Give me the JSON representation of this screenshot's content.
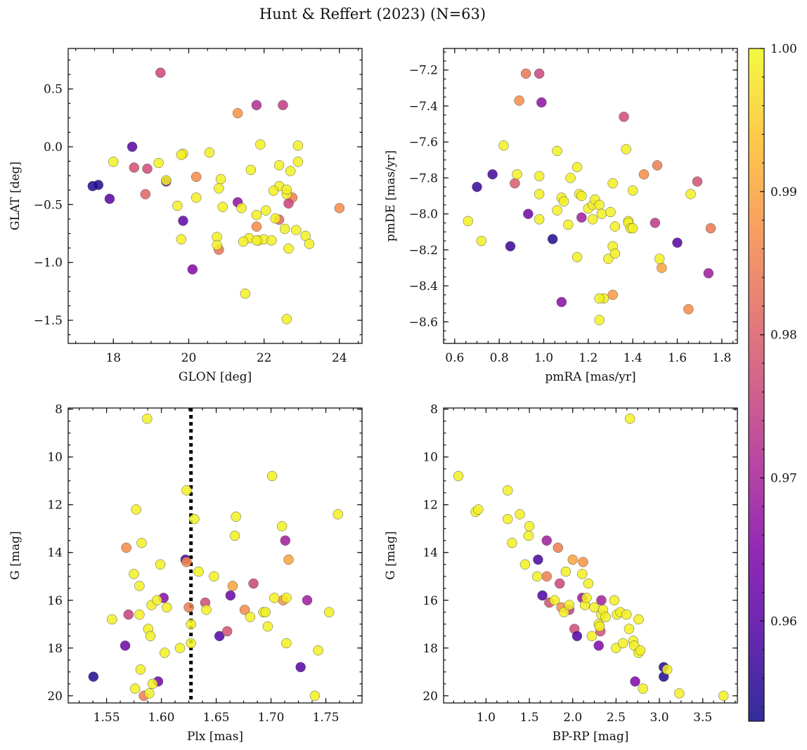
{
  "title": "Hunt & Reffert (2023) (N=63)",
  "colorbar": {
    "range": [
      0.953,
      1.0
    ],
    "ticks": [
      0.96,
      0.97,
      0.98,
      0.99,
      1.0
    ],
    "tick_labels": [
      "0.96",
      "0.97",
      "0.98",
      "0.99",
      "1.00"
    ],
    "colormap": "plasma"
  },
  "chart_data": [
    {
      "type": "scatter",
      "id": "glon_glat",
      "xlabel": "GLON [deg]",
      "ylabel": "GLAT [deg]",
      "xlim": [
        16.8,
        24.6
      ],
      "ylim": [
        -1.7,
        0.85
      ],
      "xticks": [
        18,
        20,
        22,
        24
      ],
      "xtick_labels": [
        "18",
        "20",
        "22",
        "24"
      ],
      "yticks": [
        -1.5,
        -1.0,
        -0.5,
        0.0,
        0.5
      ],
      "ytick_labels": [
        "−1.5",
        "−1.0",
        "−0.5",
        "0.0",
        "0.5"
      ],
      "inverted_y": false,
      "x": [
        17.45,
        17.6,
        17.9,
        18.5,
        18.55,
        18.9,
        18.85,
        19.4,
        19.25,
        21.3,
        21.8,
        22.5,
        21.3,
        22.75,
        22.65,
        22.4,
        21.8,
        20.8,
        20.2,
        20.1,
        19.85,
        24.0,
        18.0,
        19.4,
        19.2,
        19.85,
        19.8,
        20.55,
        21.9,
        22.9,
        22.4,
        20.85,
        20.2,
        21.65,
        20.8,
        20.9,
        19.7,
        22.7,
        22.6,
        22.4,
        22.6,
        22.9,
        22.85,
        23.1,
        23.2,
        21.4,
        21.8,
        22.3,
        21.6,
        20.75,
        20.75,
        21.45,
        21.85,
        22.0,
        22.2,
        21.5,
        22.6,
        22.65,
        21.8,
        22.55,
        22.05,
        22.25,
        19.8
      ],
      "y": [
        -0.34,
        -0.33,
        -0.45,
        0.0,
        -0.18,
        -0.19,
        -0.41,
        -0.3,
        0.64,
        0.29,
        0.36,
        0.36,
        -0.48,
        -0.44,
        -0.49,
        -0.63,
        -0.69,
        -0.89,
        -0.26,
        -1.06,
        -0.64,
        -0.53,
        -0.13,
        -0.29,
        -0.14,
        -0.06,
        -0.07,
        -0.05,
        0.02,
        0.01,
        -0.16,
        -0.28,
        -0.44,
        -0.2,
        -0.36,
        -0.52,
        -0.51,
        -0.21,
        -0.41,
        -0.34,
        -0.37,
        -0.13,
        -0.72,
        -0.77,
        -0.84,
        -0.53,
        -0.59,
        -0.62,
        -0.79,
        -0.78,
        -0.85,
        -0.82,
        -0.81,
        -0.8,
        -0.81,
        -1.27,
        -1.49,
        -0.88,
        -0.81,
        -0.71,
        -0.55,
        -0.38,
        -0.8
      ],
      "c": [
        0.955,
        0.955,
        0.96,
        0.96,
        0.978,
        0.977,
        0.981,
        0.962,
        0.976,
        0.988,
        0.972,
        0.974,
        0.967,
        0.985,
        0.976,
        0.982,
        0.987,
        0.984,
        0.987,
        0.965,
        0.961,
        0.987,
        0.999,
        0.999,
        0.999,
        0.999,
        0.999,
        0.999,
        0.999,
        0.999,
        0.999,
        0.999,
        0.999,
        0.999,
        0.999,
        0.999,
        0.999,
        0.999,
        0.999,
        0.999,
        0.999,
        0.999,
        0.999,
        0.999,
        0.999,
        0.999,
        0.999,
        0.999,
        0.999,
        0.999,
        0.999,
        0.999,
        0.999,
        0.999,
        0.999,
        0.999,
        0.999,
        0.999,
        0.999,
        0.999,
        0.999,
        0.999,
        0.999
      ]
    },
    {
      "type": "scatter",
      "id": "pmra_pmde",
      "xlabel": "pmRA [mas/yr]",
      "ylabel": "pmDE [mas/yr]",
      "xlim": [
        0.55,
        1.87
      ],
      "ylim": [
        -8.72,
        -7.08
      ],
      "xticks": [
        0.6,
        0.8,
        1.0,
        1.2,
        1.4,
        1.6,
        1.8
      ],
      "xtick_labels": [
        "0.6",
        "0.8",
        "1.0",
        "1.2",
        "1.4",
        "1.6",
        "1.8"
      ],
      "yticks": [
        -8.6,
        -8.4,
        -8.2,
        -8.0,
        -7.8,
        -7.6,
        -7.4,
        -7.2
      ],
      "ytick_labels": [
        "−8.6",
        "−8.4",
        "−8.2",
        "−8.0",
        "−7.8",
        "−7.6",
        "−7.4",
        "−7.2"
      ],
      "inverted_y": false,
      "x": [
        0.7,
        0.77,
        0.85,
        0.93,
        1.04,
        0.99,
        1.08,
        0.92,
        0.98,
        0.89,
        0.87,
        1.17,
        1.36,
        1.45,
        1.51,
        1.69,
        1.5,
        1.75,
        1.65,
        1.6,
        1.74,
        1.53,
        1.31,
        0.66,
        0.72,
        0.82,
        0.88,
        0.98,
        0.98,
        0.98,
        1.06,
        1.06,
        1.08,
        1.09,
        1.11,
        1.12,
        1.15,
        1.16,
        1.17,
        1.2,
        1.22,
        1.22,
        1.23,
        1.25,
        1.26,
        1.27,
        1.29,
        1.3,
        1.31,
        1.31,
        1.32,
        1.32,
        1.37,
        1.38,
        1.38,
        1.39,
        1.4,
        1.4,
        1.52,
        1.66,
        1.15,
        1.25,
        1.25
      ],
      "y": [
        -7.85,
        -7.78,
        -8.18,
        -8.0,
        -8.14,
        -7.38,
        -8.49,
        -7.22,
        -7.22,
        -7.37,
        -7.83,
        -8.02,
        -7.46,
        -7.78,
        -7.73,
        -7.82,
        -8.05,
        -8.08,
        -8.53,
        -8.16,
        -8.33,
        -8.3,
        -8.45,
        -8.04,
        -8.15,
        -7.62,
        -7.78,
        -7.79,
        -7.89,
        -8.03,
        -7.65,
        -7.98,
        -7.91,
        -7.93,
        -8.06,
        -7.8,
        -7.74,
        -7.89,
        -7.9,
        -7.97,
        -7.95,
        -8.03,
        -7.92,
        -7.95,
        -8.0,
        -8.47,
        -8.25,
        -7.99,
        -7.83,
        -8.18,
        -8.22,
        -8.07,
        -7.64,
        -8.04,
        -8.05,
        -8.08,
        -7.87,
        -8.08,
        -8.25,
        -7.89,
        -8.24,
        -8.59,
        -8.47
      ],
      "c": [
        0.957,
        0.958,
        0.957,
        0.963,
        0.955,
        0.967,
        0.966,
        0.984,
        0.976,
        0.987,
        0.98,
        0.969,
        0.977,
        0.987,
        0.985,
        0.978,
        0.974,
        0.984,
        0.987,
        0.96,
        0.969,
        0.99,
        0.989,
        0.999,
        0.999,
        0.999,
        0.999,
        0.999,
        0.999,
        0.999,
        0.999,
        0.999,
        0.999,
        0.999,
        0.999,
        0.999,
        0.999,
        0.999,
        0.999,
        0.999,
        0.999,
        0.999,
        0.999,
        0.999,
        0.999,
        0.999,
        0.999,
        0.999,
        0.999,
        0.999,
        0.999,
        0.999,
        0.999,
        0.999,
        0.999,
        0.999,
        0.999,
        0.999,
        0.999,
        0.999,
        0.999,
        0.999,
        0.999
      ]
    },
    {
      "type": "scatter",
      "id": "plx_g",
      "xlabel": "Plx [mas]",
      "ylabel": "G [mag]",
      "xlim": [
        1.515,
        1.783
      ],
      "ylim": [
        20.3,
        7.95
      ],
      "xticks": [
        1.55,
        1.6,
        1.65,
        1.7,
        1.75
      ],
      "xtick_labels": [
        "1.55",
        "1.60",
        "1.65",
        "1.70",
        "1.75"
      ],
      "yticks": [
        8,
        10,
        12,
        14,
        16,
        18,
        20
      ],
      "ytick_labels": [
        "8",
        "10",
        "12",
        "14",
        "16",
        "18",
        "20"
      ],
      "inverted_y": true,
      "vline": {
        "x": 1.627,
        "style": "dotted"
      },
      "x": [
        1.538,
        1.567,
        1.584,
        1.597,
        1.602,
        1.622,
        1.623,
        1.625,
        1.64,
        1.653,
        1.66,
        1.663,
        1.665,
        1.676,
        1.684,
        1.711,
        1.713,
        1.716,
        1.727,
        1.733,
        1.568,
        1.57,
        1.587,
        1.555,
        1.575,
        1.577,
        1.58,
        1.581,
        1.582,
        1.58,
        1.588,
        1.591,
        1.59,
        1.589,
        1.592,
        1.596,
        1.599,
        1.603,
        1.605,
        1.617,
        1.623,
        1.627,
        1.627,
        1.63,
        1.634,
        1.641,
        1.648,
        1.667,
        1.668,
        1.681,
        1.693,
        1.695,
        1.697,
        1.701,
        1.703,
        1.71,
        1.714,
        1.714,
        1.74,
        1.743,
        1.753,
        1.761,
        1.576
      ],
      "y": [
        19.2,
        17.9,
        20.0,
        19.4,
        15.9,
        14.3,
        14.4,
        16.3,
        16.1,
        17.5,
        17.3,
        15.8,
        15.4,
        16.4,
        15.3,
        16.0,
        13.5,
        14.3,
        18.8,
        16.0,
        13.8,
        16.6,
        8.4,
        16.8,
        14.9,
        12.2,
        16.6,
        18.9,
        13.6,
        15.4,
        17.2,
        16.2,
        17.5,
        19.9,
        19.5,
        16.0,
        14.5,
        18.2,
        16.3,
        18.0,
        11.4,
        17.0,
        17.8,
        12.6,
        14.8,
        16.4,
        15.0,
        13.3,
        12.5,
        16.7,
        16.5,
        16.5,
        17.1,
        10.8,
        15.9,
        12.9,
        17.8,
        15.9,
        20.0,
        18.1,
        16.5,
        12.4,
        19.7
      ],
      "c": [
        0.955,
        0.962,
        0.985,
        0.963,
        0.966,
        0.958,
        0.987,
        0.985,
        0.977,
        0.959,
        0.978,
        0.962,
        0.99,
        0.987,
        0.976,
        0.988,
        0.969,
        0.99,
        0.96,
        0.969,
        0.987,
        0.975,
        0.999,
        0.999,
        0.999,
        0.999,
        0.999,
        0.999,
        0.999,
        0.999,
        0.999,
        0.999,
        0.999,
        0.999,
        0.999,
        0.999,
        0.999,
        0.999,
        0.999,
        0.999,
        0.999,
        0.999,
        0.999,
        0.999,
        0.999,
        0.999,
        0.999,
        0.999,
        0.999,
        0.999,
        0.999,
        0.999,
        0.999,
        0.999,
        0.999,
        0.999,
        0.999,
        0.999,
        0.999,
        0.999,
        0.999,
        0.999,
        0.999
      ]
    },
    {
      "type": "scatter",
      "id": "bprp_g",
      "xlabel": "BP-RP [mag]",
      "ylabel": "G [mag]",
      "xlim": [
        0.51,
        3.9
      ],
      "ylim": [
        20.3,
        7.95
      ],
      "xticks": [
        1.0,
        1.5,
        2.0,
        2.5,
        3.0,
        3.5
      ],
      "xtick_labels": [
        "1.0",
        "1.5",
        "2.0",
        "2.5",
        "3.0",
        "3.5"
      ],
      "yticks": [
        8,
        10,
        12,
        14,
        16,
        18,
        20
      ],
      "ytick_labels": [
        "8",
        "10",
        "12",
        "14",
        "16",
        "18",
        "20"
      ],
      "inverted_y": true,
      "x": [
        1.6,
        1.65,
        1.7,
        1.73,
        1.83,
        1.85,
        1.87,
        1.96,
        2.0,
        2.02,
        2.05,
        2.11,
        2.3,
        2.32,
        2.33,
        2.72,
        3.05,
        3.05,
        2.12,
        1.7,
        0.68,
        0.88,
        0.91,
        1.25,
        1.25,
        1.3,
        1.39,
        1.45,
        1.49,
        1.5,
        1.59,
        1.79,
        1.9,
        1.92,
        1.96,
        2.11,
        2.14,
        2.16,
        2.22,
        2.25,
        2.3,
        2.33,
        2.35,
        2.38,
        2.5,
        2.51,
        2.55,
        2.58,
        2.62,
        2.65,
        2.7,
        2.71,
        2.76,
        2.76,
        2.78,
        2.81,
        3.09,
        3.23,
        3.74,
        2.66,
        2.48,
        2.31,
        2.18
      ],
      "y": [
        14.3,
        15.8,
        13.5,
        16.1,
        13.8,
        15.3,
        16.3,
        16.4,
        14.3,
        17.2,
        17.5,
        15.9,
        17.9,
        17.3,
        16.0,
        19.4,
        18.8,
        19.2,
        14.4,
        15.0,
        10.8,
        12.3,
        12.2,
        11.4,
        12.6,
        13.6,
        12.4,
        14.5,
        13.3,
        12.9,
        15.0,
        16.0,
        16.5,
        14.8,
        16.2,
        14.9,
        16.2,
        15.9,
        17.5,
        16.3,
        17.0,
        16.6,
        16.4,
        16.7,
        18.0,
        16.6,
        16.5,
        17.8,
        16.6,
        17.2,
        17.7,
        17.9,
        16.8,
        18.2,
        18.1,
        19.7,
        18.9,
        19.9,
        20.0,
        8.4,
        16.0,
        17.1,
        15.3
      ],
      "c": [
        0.958,
        0.959,
        0.969,
        0.978,
        0.985,
        0.976,
        0.987,
        0.975,
        0.99,
        0.977,
        0.959,
        0.968,
        0.965,
        0.978,
        0.97,
        0.965,
        0.956,
        0.955,
        0.988,
        0.985,
        0.999,
        0.999,
        0.999,
        0.999,
        0.999,
        0.999,
        0.999,
        0.999,
        0.999,
        0.999,
        0.999,
        0.999,
        0.999,
        0.999,
        0.999,
        0.999,
        0.999,
        0.999,
        0.999,
        0.999,
        0.999,
        0.999,
        0.999,
        0.999,
        0.999,
        0.999,
        0.999,
        0.999,
        0.999,
        0.999,
        0.999,
        0.999,
        0.999,
        0.999,
        0.999,
        0.999,
        0.999,
        0.999,
        0.999,
        0.999,
        0.999,
        0.999,
        0.999
      ]
    }
  ]
}
